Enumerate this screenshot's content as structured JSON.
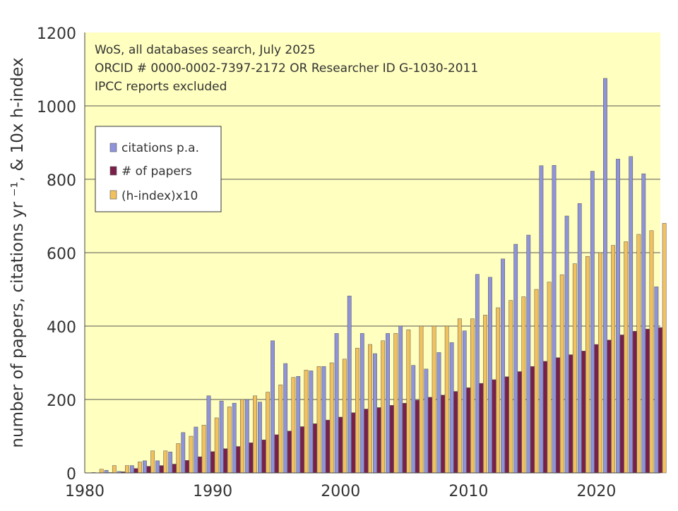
{
  "chart_data": {
    "type": "bar",
    "title": "",
    "ylabel": "number of papers, citations yr ⁻¹, & 10x h-index",
    "xlabel": "",
    "ylim": [
      0,
      1200
    ],
    "xlim": [
      1980,
      2025
    ],
    "y_ticks": [
      "0",
      "200",
      "400",
      "600",
      "800",
      "1000",
      "1200"
    ],
    "x_ticks": [
      "1980",
      "1990",
      "2000",
      "2010",
      "2020"
    ],
    "grid": "horizontal",
    "legend_position": "top-left",
    "annotations": [
      "WoS, all databases search, July 2025",
      "ORCID # 0000-0002-7397-2172 OR Researcher ID G-1030-2011",
      "IPCC reports excluded"
    ],
    "x": [
      1981,
      1982,
      1983,
      1984,
      1985,
      1986,
      1987,
      1988,
      1989,
      1990,
      1991,
      1992,
      1993,
      1994,
      1995,
      1996,
      1997,
      1998,
      1999,
      2000,
      2001,
      2002,
      2003,
      2004,
      2005,
      2006,
      2007,
      2008,
      2009,
      2010,
      2011,
      2012,
      2013,
      2014,
      2015,
      2016,
      2017,
      2018,
      2019,
      2020,
      2021,
      2022,
      2023,
      2024,
      2025
    ],
    "series": [
      {
        "name": "citations p.a.",
        "color": "#8F93D9",
        "values": [
          1,
          7,
          4,
          20,
          33,
          33,
          57,
          110,
          125,
          210,
          196,
          190,
          200,
          193,
          360,
          298,
          263,
          278,
          290,
          380,
          482,
          380,
          325,
          380,
          400,
          293,
          283,
          328,
          355,
          387,
          541,
          533,
          583,
          623,
          648,
          837,
          838,
          700,
          734,
          822,
          1075,
          855,
          862,
          815,
          507
        ]
      },
      {
        "name": "# of papers",
        "color": "#7A1F4A",
        "values": [
          0,
          1,
          3,
          12,
          18,
          20,
          24,
          34,
          44,
          58,
          66,
          72,
          82,
          90,
          104,
          114,
          126,
          134,
          144,
          152,
          164,
          174,
          178,
          184,
          190,
          198,
          206,
          212,
          222,
          232,
          244,
          254,
          262,
          276,
          290,
          304,
          314,
          322,
          332,
          350,
          362,
          376,
          386,
          392,
          396
        ]
      },
      {
        "name": "(h-index)x10",
        "color": "#F2C15E",
        "values": [
          10,
          20,
          20,
          30,
          60,
          60,
          80,
          100,
          130,
          150,
          180,
          200,
          210,
          220,
          240,
          260,
          280,
          290,
          300,
          310,
          340,
          350,
          360,
          380,
          390,
          400,
          400,
          400,
          420,
          420,
          430,
          450,
          470,
          480,
          500,
          520,
          540,
          570,
          590,
          600,
          620,
          630,
          650,
          660,
          680
        ]
      }
    ]
  },
  "colors": {
    "plot_background": "#FFFFC0",
    "gridline": "#555555",
    "legend_background": "#FFFFFF",
    "bar_outline": "#555555"
  }
}
